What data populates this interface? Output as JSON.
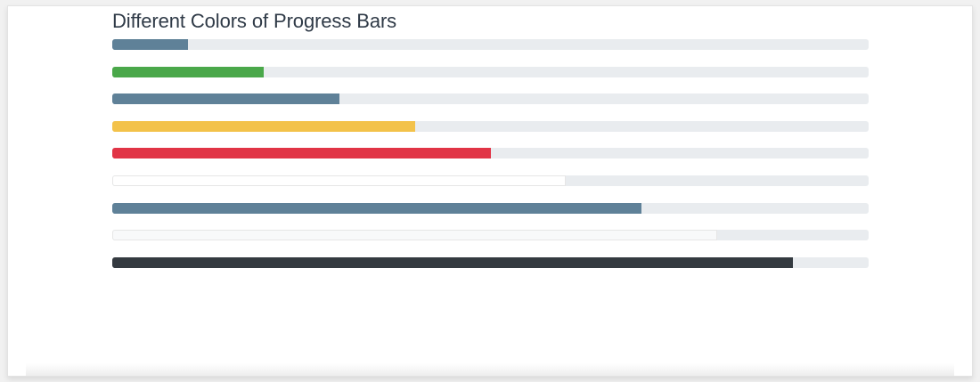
{
  "page": {
    "title": "Different Colors of Progress Bars"
  },
  "progress_bars": [
    {
      "variant": "default",
      "percent": 10,
      "color": "#5f8198",
      "track": "#e9ecef"
    },
    {
      "variant": "success",
      "percent": 20,
      "color": "#4aa84a",
      "track": "#e9ecef"
    },
    {
      "variant": "info",
      "percent": 30,
      "color": "#5f8198",
      "track": "#e9ecef"
    },
    {
      "variant": "warning",
      "percent": 40,
      "color": "#f3c24a",
      "track": "#e9ecef"
    },
    {
      "variant": "danger",
      "percent": 50,
      "color": "#e13446",
      "track": "#e9ecef"
    },
    {
      "variant": "white",
      "percent": 60,
      "color": "#ffffff",
      "track": "#e9ecef"
    },
    {
      "variant": "primary",
      "percent": 70,
      "color": "#5f8198",
      "track": "#e9ecef"
    },
    {
      "variant": "light",
      "percent": 80,
      "color": "#f8f9fa",
      "track": "#e9ecef"
    },
    {
      "variant": "dark",
      "percent": 90,
      "color": "#343a40",
      "track": "#e9ecef"
    }
  ]
}
